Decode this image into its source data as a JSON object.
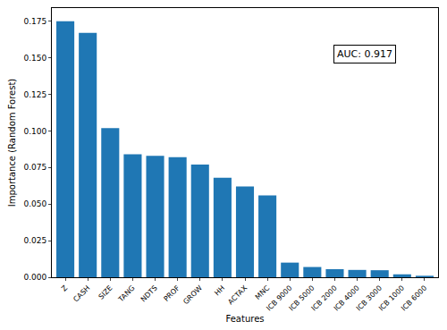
{
  "chart_data": {
    "type": "bar",
    "x_label": "Features",
    "y_label": "Importance (Random Forest)",
    "categories": [
      "Z",
      "CASH",
      "SIZE",
      "TANG",
      "NDTS",
      "PROF",
      "GROW",
      "HH",
      "ACTAX",
      "MNC",
      "ICB 9000",
      "ICB 5000",
      "ICB 2000",
      "ICB 4000",
      "ICB 3000",
      "ICB 1000",
      "ICB 6000"
    ],
    "values": [
      0.175,
      0.167,
      0.102,
      0.084,
      0.083,
      0.082,
      0.077,
      0.068,
      0.062,
      0.056,
      0.01,
      0.007,
      0.0055,
      0.005,
      0.0048,
      0.002,
      0.001
    ],
    "color": "#1f77b4",
    "ylim": [
      0,
      0.184
    ],
    "yticks": [
      {
        "value": 0,
        "label": "0.000"
      },
      {
        "value": 0.025,
        "label": "0.025"
      },
      {
        "value": 0.05,
        "label": "0.050"
      },
      {
        "value": 0.075,
        "label": "0.075"
      },
      {
        "value": 0.1,
        "label": "0.100"
      },
      {
        "value": 0.125,
        "label": "0.125"
      },
      {
        "value": 0.15,
        "label": "0.150"
      },
      {
        "value": 0.175,
        "label": "0.175"
      }
    ],
    "grid": false,
    "annotations": [
      {
        "text": "AUC: 0.917"
      }
    ]
  }
}
